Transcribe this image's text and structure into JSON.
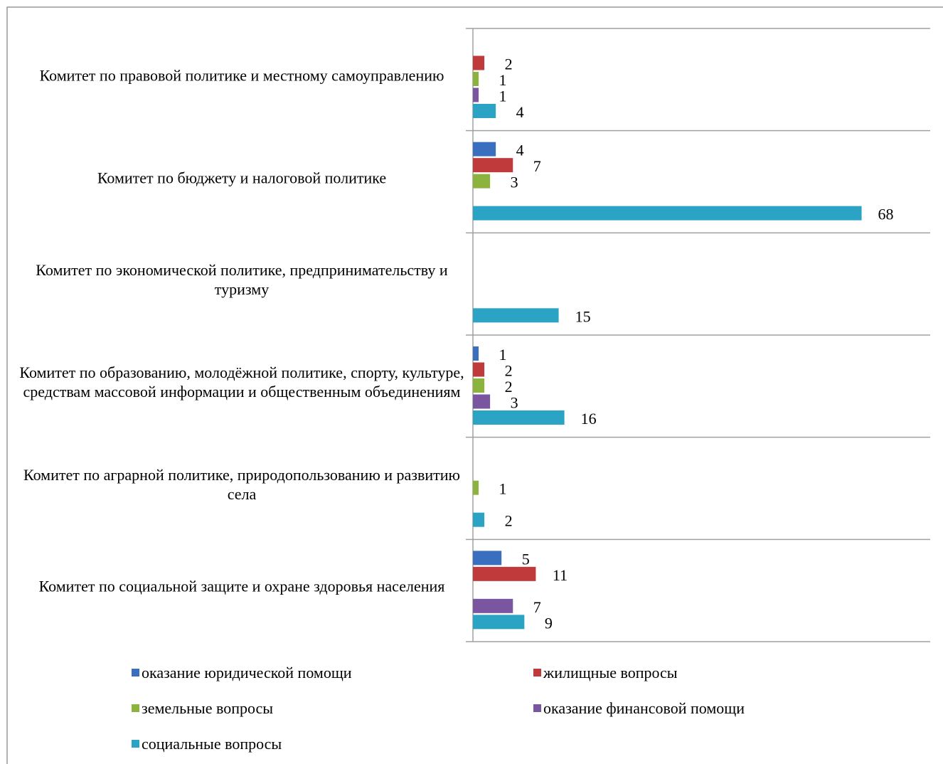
{
  "chart_data": {
    "type": "bar",
    "orientation": "horizontal",
    "categories": [
      "Комитет по правовой политике и местному самоуправлению",
      "Комитет по бюджету и налоговой политике",
      "Комитет по экономической политике, предпринимательству и туризму",
      "Комитет по образованию, молодёжной политике, спорту, культуре, средствам массовой информации и общественным объединениям",
      "Комитет по аграрной политике, природопользованию и развитию села",
      "Комитет по социальной защите и охране здоровья населения"
    ],
    "series": [
      {
        "name": "оказание юридической помощи",
        "color": "#3a6fbf",
        "values": [
          null,
          4,
          null,
          1,
          null,
          5
        ]
      },
      {
        "name": "жилищные вопросы",
        "color": "#c0393b",
        "values": [
          2,
          7,
          null,
          2,
          null,
          11
        ]
      },
      {
        "name": "земельные вопросы",
        "color": "#8db33f",
        "values": [
          1,
          3,
          null,
          2,
          1,
          null
        ]
      },
      {
        "name": "оказание финансовой помощи",
        "color": "#7a55a0",
        "values": [
          1,
          null,
          null,
          3,
          null,
          7
        ]
      },
      {
        "name": "социальные вопросы",
        "color": "#2aa3c4",
        "values": [
          4,
          68,
          15,
          16,
          2,
          9
        ]
      }
    ],
    "xlim": [
      0,
      80
    ],
    "data_labels": true,
    "legend": "bottom"
  }
}
